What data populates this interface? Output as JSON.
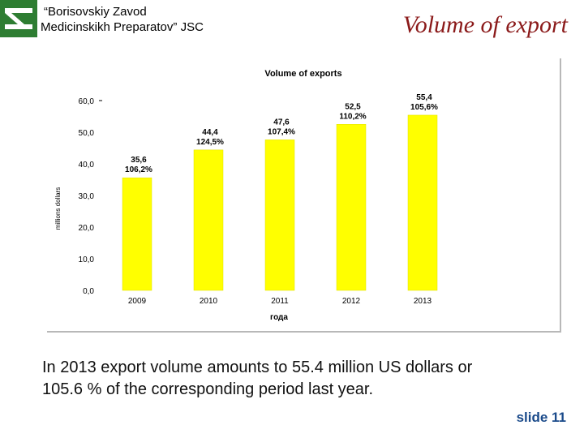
{
  "header": {
    "company_line1": "“Borisovskiy Zavod",
    "company_line2": "Medicinskikh Preparatov” JSC",
    "slide_title": "Volume of export"
  },
  "logo": {
    "icon": "company-logo-icon",
    "color": "#2e7d32"
  },
  "chart_data": {
    "type": "bar",
    "title": "Volume of exports",
    "xlabel": "года",
    "ylabel": "millions dollars",
    "ylim": [
      0,
      60
    ],
    "y_ticks": [
      "0,0",
      "10,0",
      "20,0",
      "30,0",
      "40,0",
      "50,0",
      "60,0"
    ],
    "y_tick_values": [
      0,
      10,
      20,
      30,
      40,
      50,
      60
    ],
    "categories": [
      "2009",
      "2010",
      "2011",
      "2012",
      "2013"
    ],
    "values": [
      35.6,
      44.4,
      47.6,
      52.5,
      55.4
    ],
    "value_labels": [
      "35,6",
      "44,4",
      "47,6",
      "52,5",
      "55,4"
    ],
    "growth_labels": [
      "106,2%",
      "124,5%",
      "107,4%",
      "110,2%",
      "105,6%"
    ],
    "bar_color": "#ffff00",
    "grid": false,
    "legend": "none"
  },
  "caption": "In 2013 export volume amounts to 55.4 million US dollars or 105.6 % of the corresponding period last year.",
  "slide_label": "slide 11"
}
